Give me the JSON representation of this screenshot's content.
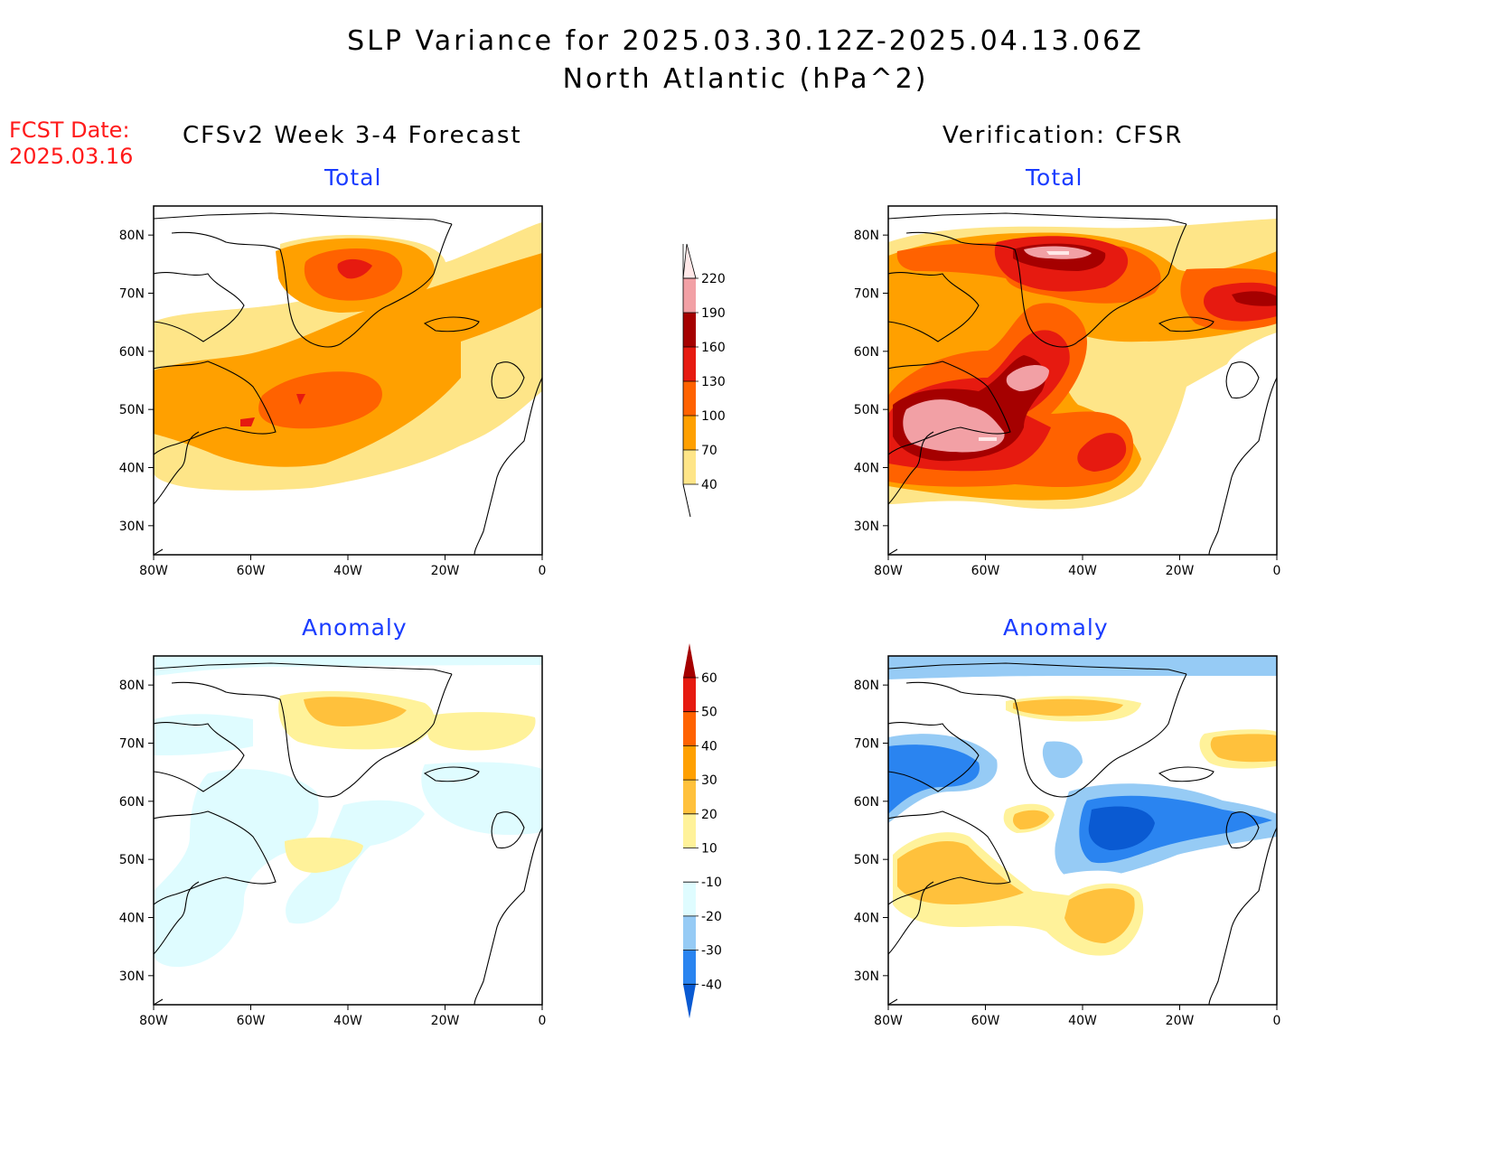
{
  "header": {
    "title": "SLP Variance for 2025.03.30.12Z-2025.04.13.06Z",
    "subtitle": "North Atlantic (hPa^2)"
  },
  "fcst": {
    "label": "FCST Date:",
    "date": "2025.03.16"
  },
  "columns": {
    "left": "CFSv2 Week 3-4 Forecast",
    "right": "Verification: CFSR"
  },
  "panels": {
    "tl": {
      "title": "Total"
    },
    "tr": {
      "title": "Total"
    },
    "bl": {
      "title": "Anomaly"
    },
    "br": {
      "title": "Anomaly"
    }
  },
  "axes": {
    "lat_ticks": [
      "80N",
      "70N",
      "60N",
      "50N",
      "40N",
      "30N"
    ],
    "lon_ticks": [
      "80W",
      "60W",
      "40W",
      "20W",
      "0"
    ],
    "lat_range": [
      25,
      85
    ],
    "lon_range": [
      -80,
      0
    ]
  },
  "colorbars": {
    "total": {
      "levels": [
        "40",
        "70",
        "100",
        "130",
        "160",
        "190",
        "220"
      ],
      "colors": [
        "#fee588",
        "#ffa000",
        "#ff6200",
        "#e61a10",
        "#a50000",
        "#f2a0a5",
        "#ffe8e8"
      ]
    },
    "anomaly": {
      "levels": [
        "-40",
        "-30",
        "-20",
        "-10",
        "10",
        "20",
        "30",
        "40",
        "50",
        "60"
      ],
      "colors": [
        "#0a5ad2",
        "#2a84f0",
        "#96cbf5",
        "#dffcff",
        "#ffffff",
        "#fff29a",
        "#ffc13c",
        "#ffa000",
        "#ff6200",
        "#e61a10",
        "#a50000"
      ]
    }
  },
  "colors": {
    "land_outline": "#000000",
    "title_red": "#ff1a1a",
    "panel_title_blue": "#1a3cff"
  }
}
